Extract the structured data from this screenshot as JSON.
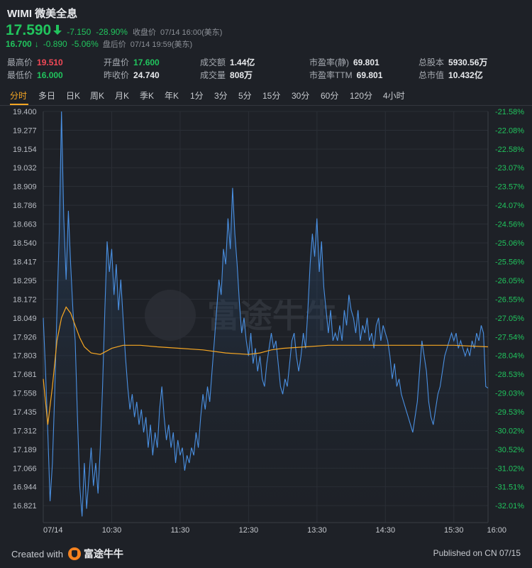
{
  "header": {
    "symbol": "WIMI",
    "name": "微美全息",
    "price": "17.590",
    "change": "-7.150",
    "change_pct": "-28.90%",
    "close_label": "收盘价",
    "close_time": "07/14 16:00(美东)",
    "after_hours_price": "16.700",
    "after_hours_change": "-0.890",
    "after_hours_change_pct": "-5.06%",
    "after_hours_label": "盘后价",
    "after_hours_time": "07/14 19:59(美东)",
    "down_color": "#21c45d",
    "up_color": "#f24957"
  },
  "stats": {
    "high_label": "最高价",
    "high": "19.510",
    "low_label": "最低价",
    "low": "16.000",
    "open_label": "开盘价",
    "open": "17.600",
    "prev_close_label": "昨收价",
    "prev_close": "24.740",
    "turnover_label": "成交额",
    "turnover": "1.44亿",
    "volume_label": "成交量",
    "volume": "808万",
    "pe_static_label": "市盈率(静)",
    "pe_static": "69.801",
    "pe_ttm_label": "市盈率TTM",
    "pe_ttm": "69.801",
    "shares_label": "总股本",
    "shares": "5930.56万",
    "mktcap_label": "总市值",
    "mktcap": "10.432亿"
  },
  "tabs": [
    "分时",
    "多日",
    "日K",
    "周K",
    "月K",
    "季K",
    "年K",
    "1分",
    "3分",
    "5分",
    "15分",
    "30分",
    "60分",
    "120分",
    "4小时"
  ],
  "active_tab": "分时",
  "watermark": "富途牛牛",
  "footer": {
    "created_with": "Created with",
    "brand": "富途牛牛",
    "published": "Published on CN 07/15"
  },
  "chart_data": {
    "type": "line",
    "x_ticks": [
      "07/14",
      "10:30",
      "11:30",
      "12:30",
      "13:30",
      "14:30",
      "15:30",
      "16:00"
    ],
    "x_range": [
      "09:30",
      "16:00"
    ],
    "y_ticks": [
      "19.400",
      "19.277",
      "19.154",
      "19.032",
      "18.909",
      "18.786",
      "18.663",
      "18.540",
      "18.417",
      "18.295",
      "18.172",
      "18.049",
      "17.926",
      "17.803",
      "17.681",
      "17.558",
      "17.435",
      "17.312",
      "17.189",
      "17.066",
      "16.944",
      "16.821"
    ],
    "y_right_ticks": [
      "-21.58%",
      "-22.08%",
      "-22.58%",
      "-23.07%",
      "-23.57%",
      "-24.07%",
      "-24.56%",
      "-25.06%",
      "-25.56%",
      "-26.05%",
      "-26.55%",
      "-27.05%",
      "-27.54%",
      "-28.04%",
      "-28.53%",
      "-29.03%",
      "-29.53%",
      "-30.02%",
      "-30.52%",
      "-31.02%",
      "-31.51%",
      "-32.01%"
    ],
    "ylim": [
      16.71,
      19.4
    ],
    "prev_close": 24.74,
    "series": [
      {
        "color": "#4a90e2",
        "points": [
          [
            "09:30",
            18.05
          ],
          [
            "09:32",
            17.7
          ],
          [
            "09:34",
            17.3
          ],
          [
            "09:36",
            16.85
          ],
          [
            "09:38",
            17.1
          ],
          [
            "09:40",
            17.55
          ],
          [
            "09:42",
            18.1
          ],
          [
            "09:44",
            18.6
          ],
          [
            "09:46",
            19.4
          ],
          [
            "09:48",
            18.7
          ],
          [
            "09:50",
            18.3
          ],
          [
            "09:52",
            18.75
          ],
          [
            "09:54",
            18.4
          ],
          [
            "09:56",
            18.1
          ],
          [
            "09:58",
            17.9
          ],
          [
            "10:00",
            17.4
          ],
          [
            "10:02",
            16.95
          ],
          [
            "10:04",
            16.75
          ],
          [
            "10:06",
            17.1
          ],
          [
            "10:08",
            16.8
          ],
          [
            "10:10",
            17.0
          ],
          [
            "10:12",
            17.2
          ],
          [
            "10:14",
            16.95
          ],
          [
            "10:16",
            17.1
          ],
          [
            "10:18",
            16.9
          ],
          [
            "10:20",
            17.2
          ],
          [
            "10:22",
            17.6
          ],
          [
            "10:24",
            18.1
          ],
          [
            "10:26",
            18.55
          ],
          [
            "10:28",
            18.35
          ],
          [
            "10:30",
            18.5
          ],
          [
            "10:32",
            18.2
          ],
          [
            "10:34",
            18.4
          ],
          [
            "10:36",
            18.1
          ],
          [
            "10:38",
            18.3
          ],
          [
            "10:40",
            18.05
          ],
          [
            "10:42",
            17.8
          ],
          [
            "10:44",
            17.6
          ],
          [
            "10:46",
            17.45
          ],
          [
            "10:48",
            17.55
          ],
          [
            "10:50",
            17.4
          ],
          [
            "10:52",
            17.5
          ],
          [
            "10:54",
            17.35
          ],
          [
            "10:56",
            17.45
          ],
          [
            "10:58",
            17.3
          ],
          [
            "11:00",
            17.4
          ],
          [
            "11:02",
            17.2
          ],
          [
            "11:04",
            17.35
          ],
          [
            "11:06",
            17.15
          ],
          [
            "11:08",
            17.3
          ],
          [
            "11:10",
            17.2
          ],
          [
            "11:12",
            17.45
          ],
          [
            "11:14",
            17.6
          ],
          [
            "11:16",
            17.4
          ],
          [
            "11:18",
            17.25
          ],
          [
            "11:20",
            17.35
          ],
          [
            "11:22",
            17.2
          ],
          [
            "11:24",
            17.3
          ],
          [
            "11:26",
            17.1
          ],
          [
            "11:28",
            17.25
          ],
          [
            "11:30",
            17.15
          ],
          [
            "11:32",
            17.2
          ],
          [
            "11:34",
            17.05
          ],
          [
            "11:36",
            17.15
          ],
          [
            "11:38",
            17.1
          ],
          [
            "11:40",
            17.2
          ],
          [
            "11:42",
            17.15
          ],
          [
            "11:44",
            17.3
          ],
          [
            "11:46",
            17.2
          ],
          [
            "11:48",
            17.4
          ],
          [
            "11:50",
            17.55
          ],
          [
            "11:52",
            17.45
          ],
          [
            "11:54",
            17.6
          ],
          [
            "11:56",
            17.5
          ],
          [
            "11:58",
            17.7
          ],
          [
            "12:00",
            17.9
          ],
          [
            "12:02",
            18.1
          ],
          [
            "12:04",
            18.3
          ],
          [
            "12:06",
            18.2
          ],
          [
            "12:08",
            18.5
          ],
          [
            "12:10",
            18.4
          ],
          [
            "12:12",
            18.7
          ],
          [
            "12:14",
            18.5
          ],
          [
            "12:16",
            18.9
          ],
          [
            "12:18",
            18.6
          ],
          [
            "12:20",
            18.4
          ],
          [
            "12:22",
            18.15
          ],
          [
            "12:24",
            17.95
          ],
          [
            "12:26",
            18.05
          ],
          [
            "12:28",
            17.9
          ],
          [
            "12:30",
            17.8
          ],
          [
            "12:32",
            17.95
          ],
          [
            "12:34",
            17.75
          ],
          [
            "12:36",
            17.85
          ],
          [
            "12:38",
            17.7
          ],
          [
            "12:40",
            17.8
          ],
          [
            "12:42",
            17.65
          ],
          [
            "12:44",
            17.6
          ],
          [
            "12:46",
            17.75
          ],
          [
            "12:48",
            17.85
          ],
          [
            "12:50",
            17.95
          ],
          [
            "12:52",
            17.85
          ],
          [
            "12:54",
            17.9
          ],
          [
            "12:56",
            17.75
          ],
          [
            "12:58",
            17.6
          ],
          [
            "13:00",
            17.55
          ],
          [
            "13:02",
            17.65
          ],
          [
            "13:04",
            17.6
          ],
          [
            "13:06",
            17.75
          ],
          [
            "13:08",
            17.9
          ],
          [
            "13:10",
            17.95
          ],
          [
            "13:12",
            17.8
          ],
          [
            "13:14",
            17.7
          ],
          [
            "13:16",
            17.8
          ],
          [
            "13:18",
            17.95
          ],
          [
            "13:20",
            17.85
          ],
          [
            "13:22",
            18.1
          ],
          [
            "13:24",
            18.4
          ],
          [
            "13:26",
            18.6
          ],
          [
            "13:28",
            18.45
          ],
          [
            "13:30",
            18.7
          ],
          [
            "13:32",
            18.35
          ],
          [
            "13:34",
            18.55
          ],
          [
            "13:36",
            18.25
          ],
          [
            "13:38",
            18.1
          ],
          [
            "13:40",
            17.95
          ],
          [
            "13:42",
            18.1
          ],
          [
            "13:44",
            17.9
          ],
          [
            "13:46",
            17.95
          ],
          [
            "13:48",
            17.9
          ],
          [
            "13:50",
            18.0
          ],
          [
            "13:52",
            17.9
          ],
          [
            "13:54",
            18.1
          ],
          [
            "13:56",
            18.0
          ],
          [
            "13:58",
            18.2
          ],
          [
            "14:00",
            18.1
          ],
          [
            "14:02",
            18.05
          ],
          [
            "14:04",
            17.95
          ],
          [
            "14:06",
            18.1
          ],
          [
            "14:08",
            17.9
          ],
          [
            "14:10",
            18.0
          ],
          [
            "14:12",
            17.95
          ],
          [
            "14:14",
            18.05
          ],
          [
            "14:16",
            17.9
          ],
          [
            "14:18",
            17.95
          ],
          [
            "14:20",
            17.85
          ],
          [
            "14:22",
            18.0
          ],
          [
            "14:24",
            18.05
          ],
          [
            "14:26",
            17.9
          ],
          [
            "14:28",
            18.0
          ],
          [
            "14:30",
            17.95
          ],
          [
            "14:32",
            17.9
          ],
          [
            "14:34",
            17.8
          ],
          [
            "14:36",
            17.65
          ],
          [
            "14:38",
            17.75
          ],
          [
            "14:40",
            17.6
          ],
          [
            "14:42",
            17.65
          ],
          [
            "14:44",
            17.55
          ],
          [
            "14:46",
            17.5
          ],
          [
            "14:48",
            17.45
          ],
          [
            "14:50",
            17.4
          ],
          [
            "14:52",
            17.35
          ],
          [
            "14:54",
            17.3
          ],
          [
            "14:56",
            17.4
          ],
          [
            "14:58",
            17.5
          ],
          [
            "15:00",
            17.7
          ],
          [
            "15:02",
            17.9
          ],
          [
            "15:04",
            17.8
          ],
          [
            "15:06",
            17.7
          ],
          [
            "15:08",
            17.5
          ],
          [
            "15:10",
            17.4
          ],
          [
            "15:12",
            17.35
          ],
          [
            "15:14",
            17.45
          ],
          [
            "15:16",
            17.55
          ],
          [
            "15:18",
            17.6
          ],
          [
            "15:20",
            17.7
          ],
          [
            "15:22",
            17.8
          ],
          [
            "15:24",
            17.85
          ],
          [
            "15:26",
            17.9
          ],
          [
            "15:28",
            17.95
          ],
          [
            "15:30",
            17.9
          ],
          [
            "15:32",
            17.95
          ],
          [
            "15:34",
            17.85
          ],
          [
            "15:36",
            17.9
          ],
          [
            "15:38",
            17.85
          ],
          [
            "15:40",
            17.8
          ],
          [
            "15:42",
            17.85
          ],
          [
            "15:44",
            17.8
          ],
          [
            "15:46",
            17.9
          ],
          [
            "15:48",
            17.85
          ],
          [
            "15:50",
            17.95
          ],
          [
            "15:52",
            17.9
          ],
          [
            "15:54",
            18.0
          ],
          [
            "15:56",
            17.95
          ],
          [
            "15:58",
            17.6
          ],
          [
            "16:00",
            17.59
          ]
        ]
      },
      {
        "color": "#f5a623",
        "points": [
          [
            "09:30",
            17.65
          ],
          [
            "09:34",
            17.35
          ],
          [
            "09:38",
            17.6
          ],
          [
            "09:42",
            17.9
          ],
          [
            "09:46",
            18.05
          ],
          [
            "09:50",
            18.12
          ],
          [
            "09:54",
            18.08
          ],
          [
            "09:58",
            18.0
          ],
          [
            "10:02",
            17.92
          ],
          [
            "10:06",
            17.86
          ],
          [
            "10:12",
            17.82
          ],
          [
            "10:20",
            17.81
          ],
          [
            "10:30",
            17.85
          ],
          [
            "10:40",
            17.87
          ],
          [
            "10:55",
            17.87
          ],
          [
            "11:10",
            17.86
          ],
          [
            "11:30",
            17.85
          ],
          [
            "11:50",
            17.84
          ],
          [
            "12:10",
            17.82
          ],
          [
            "12:30",
            17.81
          ],
          [
            "12:40",
            17.82
          ],
          [
            "12:50",
            17.84
          ],
          [
            "13:00",
            17.85
          ],
          [
            "13:20",
            17.86
          ],
          [
            "13:40",
            17.87
          ],
          [
            "14:00",
            17.87
          ],
          [
            "14:30",
            17.87
          ],
          [
            "15:00",
            17.87
          ],
          [
            "15:30",
            17.87
          ],
          [
            "16:00",
            17.86
          ]
        ]
      }
    ]
  }
}
